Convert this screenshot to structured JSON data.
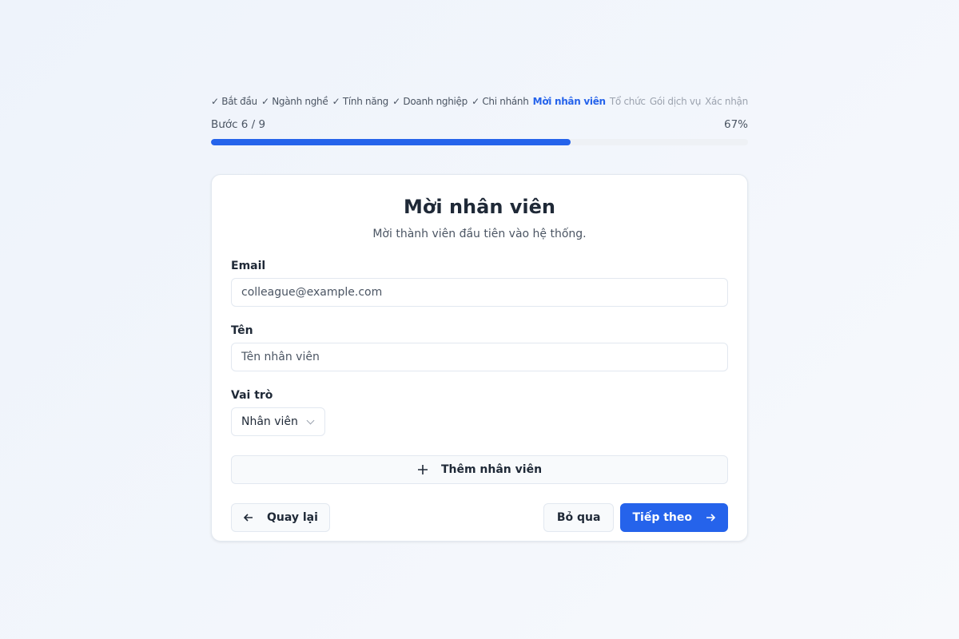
{
  "steps": [
    {
      "label": "✓ Bắt đầu",
      "state": "done"
    },
    {
      "label": "✓ Ngành nghề",
      "state": "done"
    },
    {
      "label": "✓ Tính năng",
      "state": "done"
    },
    {
      "label": "✓ Doanh nghiệp",
      "state": "done"
    },
    {
      "label": "✓ Chi nhánh",
      "state": "done"
    },
    {
      "label": "Mời nhân viên",
      "state": "active"
    },
    {
      "label": "Tổ chức",
      "state": "future"
    },
    {
      "label": "Gói dịch vụ",
      "state": "future"
    },
    {
      "label": "Xác nhận",
      "state": "future"
    }
  ],
  "progress": {
    "step_text": "Bước 6 / 9",
    "percent_text": "67%",
    "percent": 67
  },
  "card": {
    "title": "Mời nhân viên",
    "subtitle": "Mời thành viên đầu tiên vào hệ thống.",
    "email": {
      "label": "Email",
      "placeholder": "colleague@example.com",
      "value": ""
    },
    "name": {
      "label": "Tên",
      "placeholder": "Tên nhân viên",
      "value": ""
    },
    "role": {
      "label": "Vai trò",
      "value": "Nhân viên"
    },
    "add_label": "Thêm nhân viên",
    "back_label": "Quay lại",
    "skip_label": "Bỏ qua",
    "next_label": "Tiếp theo"
  },
  "colors": {
    "accent": "#2563eb"
  }
}
